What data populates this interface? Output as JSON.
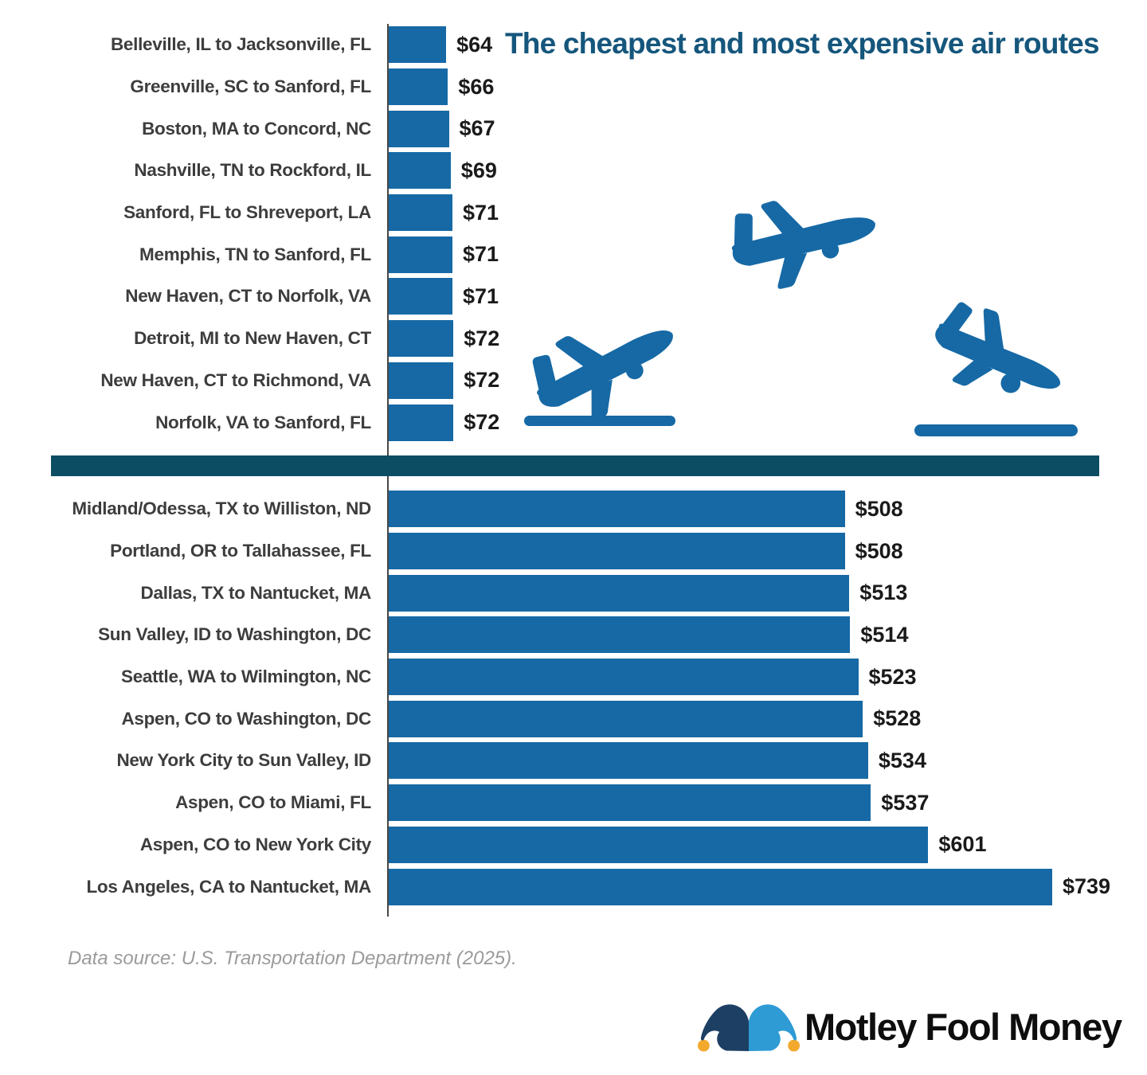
{
  "title": "The cheapest and most expensive air routes",
  "footer": {
    "source_note": "Data source: U.S. Transportation Department (2025).",
    "brand": "Motley Fool Money"
  },
  "colors": {
    "bar": "#1669A5",
    "divider": "#0D4D63",
    "title": "#15567C",
    "route_label": "#3d3d3d",
    "value_label": "#1a1a1a",
    "source_note": "#9b9b9b",
    "hat_left": "#1C3F63",
    "hat_right": "#2E9BD5",
    "hat_ball": "#F2A92D",
    "wordmark": "#0e0e0e"
  },
  "icons": [
    "plane-takeoff-icon",
    "plane-cruise-icon",
    "plane-landing-icon",
    "motley-fool-jester-hat-icon"
  ],
  "chart_data": {
    "type": "bar",
    "orientation": "horizontal",
    "title": "The cheapest and most expensive air routes",
    "value_prefix": "$",
    "xlim": [
      0,
      739
    ],
    "grid": false,
    "legend": false,
    "sections": [
      {
        "name": "cheapest_routes",
        "categories": [
          "Belleville, IL to Jacksonville, FL",
          "Greenville, SC to Sanford, FL",
          "Boston, MA to Concord, NC",
          "Nashville, TN to Rockford, IL",
          "Sanford, FL to Shreveport, LA",
          "Memphis, TN to Sanford, FL",
          "New Haven, CT to Norfolk, VA",
          "Detroit, MI to New Haven, CT",
          "New Haven, CT to Richmond, VA",
          "Norfolk, VA to Sanford, FL"
        ],
        "values": [
          64,
          66,
          67,
          69,
          71,
          71,
          71,
          72,
          72,
          72
        ],
        "value_labels": [
          "$64",
          "$66",
          "$67",
          "$69",
          "$71",
          "$71",
          "$71",
          "$72",
          "$72",
          "$72"
        ]
      },
      {
        "name": "most_expensive_routes",
        "categories": [
          "Midland/Odessa, TX to Williston, ND",
          "Portland, OR to Tallahassee, FL",
          "Dallas, TX to Nantucket, MA",
          "Sun Valley, ID to Washington, DC",
          "Seattle, WA to Wilmington, NC",
          "Aspen, CO to Washington, DC",
          "New York City to Sun Valley, ID",
          "Aspen, CO to Miami, FL",
          "Aspen, CO to New York City",
          "Los Angeles, CA to Nantucket, MA"
        ],
        "values": [
          508,
          508,
          513,
          514,
          523,
          528,
          534,
          537,
          601,
          739
        ],
        "value_labels": [
          "$508",
          "$508",
          "$513",
          "$514",
          "$523",
          "$528",
          "$534",
          "$537",
          "$601",
          "$739"
        ]
      }
    ]
  }
}
